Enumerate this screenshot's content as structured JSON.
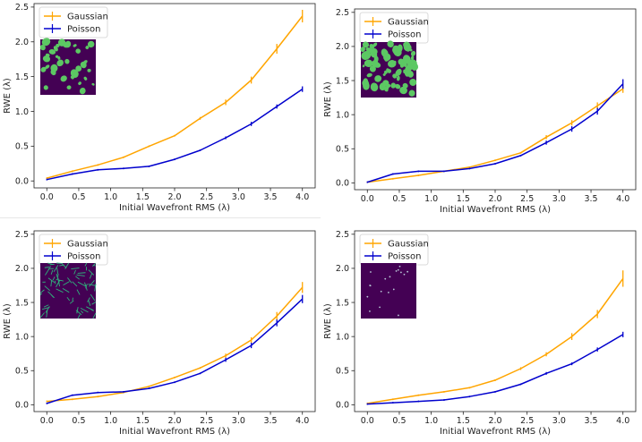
{
  "colors": {
    "gaussian": "#FFA500",
    "poisson": "#0000CD",
    "inset_bg": "#440154",
    "inset_blob": "#5CC863",
    "inset_line": "#2FB47C",
    "axis": "#222222"
  },
  "chart_data": [
    {
      "type": "line",
      "panel": "top-left",
      "xlabel": "Initial Wavefront RMS (λ)",
      "ylabel": "RWE (λ)",
      "xlim": [
        0.0,
        4.0
      ],
      "ylim": [
        0.0,
        2.5
      ],
      "xticks": [
        "0.0",
        "0.5",
        "1.0",
        "1.5",
        "2.0",
        "2.5",
        "3.0",
        "3.5",
        "4.0"
      ],
      "yticks": [
        "0.0",
        "0.5",
        "1.0",
        "1.5",
        "2.0",
        "2.5"
      ],
      "legend_position": "top-left",
      "inset": "blobs",
      "series": [
        {
          "name": "Gaussian",
          "x": [
            0.0,
            0.4,
            0.8,
            1.2,
            1.6,
            2.0,
            2.4,
            2.8,
            3.2,
            3.6,
            4.0
          ],
          "values": [
            0.04,
            0.14,
            0.23,
            0.34,
            0.5,
            0.65,
            0.9,
            1.13,
            1.45,
            1.9,
            2.37
          ],
          "errors": [
            0.0,
            0.0,
            0.0,
            0.0,
            0.0,
            0.0,
            0.02,
            0.04,
            0.05,
            0.07,
            0.09
          ]
        },
        {
          "name": "Poisson",
          "x": [
            0.0,
            0.4,
            0.8,
            1.2,
            1.6,
            2.0,
            2.4,
            2.8,
            3.2,
            3.6,
            4.0
          ],
          "values": [
            0.02,
            0.1,
            0.16,
            0.18,
            0.21,
            0.31,
            0.44,
            0.62,
            0.82,
            1.07,
            1.32
          ],
          "errors": [
            0.0,
            0.0,
            0.0,
            0.0,
            0.0,
            0.0,
            0.0,
            0.02,
            0.03,
            0.03,
            0.04
          ]
        }
      ]
    },
    {
      "type": "line",
      "panel": "top-right",
      "xlabel": "Initial Wavefront RMS (λ)",
      "ylabel": "RWE (λ)",
      "xlim": [
        0.0,
        4.0
      ],
      "ylim": [
        0.0,
        2.5
      ],
      "xticks": [
        "0.0",
        "0.5",
        "1.0",
        "1.5",
        "2.0",
        "2.5",
        "3.0",
        "3.5",
        "4.0"
      ],
      "yticks": [
        "0.0",
        "0.5",
        "1.0",
        "1.5",
        "2.0",
        "2.5"
      ],
      "legend_position": "top-left",
      "inset": "dense-blobs",
      "series": [
        {
          "name": "Gaussian",
          "x": [
            0.0,
            0.4,
            0.8,
            1.2,
            1.6,
            2.0,
            2.4,
            2.8,
            3.2,
            3.6,
            4.0
          ],
          "values": [
            0.01,
            0.06,
            0.11,
            0.17,
            0.23,
            0.33,
            0.44,
            0.67,
            0.88,
            1.13,
            1.38
          ],
          "errors": [
            0.0,
            0.0,
            0.0,
            0.0,
            0.0,
            0.0,
            0.0,
            0.03,
            0.04,
            0.05,
            0.06
          ]
        },
        {
          "name": "Poisson",
          "x": [
            0.0,
            0.4,
            0.8,
            1.2,
            1.6,
            2.0,
            2.4,
            2.8,
            3.2,
            3.6,
            4.0
          ],
          "values": [
            0.01,
            0.13,
            0.17,
            0.17,
            0.21,
            0.28,
            0.4,
            0.59,
            0.79,
            1.05,
            1.45
          ],
          "errors": [
            0.0,
            0.0,
            0.0,
            0.0,
            0.0,
            0.0,
            0.0,
            0.03,
            0.04,
            0.05,
            0.07
          ]
        }
      ]
    },
    {
      "type": "line",
      "panel": "bottom-left",
      "xlabel": "Initial Wavefront RMS (λ)",
      "ylabel": "RWE (λ)",
      "xlim": [
        0.0,
        4.0
      ],
      "ylim": [
        0.0,
        2.5
      ],
      "xticks": [
        "0.0",
        "0.5",
        "1.0",
        "1.5",
        "2.0",
        "2.5",
        "3.0",
        "3.5",
        "4.0"
      ],
      "yticks": [
        "0.0",
        "0.5",
        "1.0",
        "1.5",
        "2.0",
        "2.5"
      ],
      "legend_position": "top-left",
      "inset": "lines",
      "series": [
        {
          "name": "Gaussian",
          "x": [
            0.0,
            0.4,
            0.8,
            1.2,
            1.6,
            2.0,
            2.4,
            2.8,
            3.2,
            3.6,
            4.0
          ],
          "values": [
            0.05,
            0.08,
            0.12,
            0.18,
            0.27,
            0.4,
            0.54,
            0.72,
            0.95,
            1.3,
            1.72
          ],
          "errors": [
            0.0,
            0.0,
            0.0,
            0.0,
            0.0,
            0.0,
            0.0,
            0.03,
            0.04,
            0.06,
            0.08
          ]
        },
        {
          "name": "Poisson",
          "x": [
            0.0,
            0.4,
            0.8,
            1.2,
            1.6,
            2.0,
            2.4,
            2.8,
            3.2,
            3.6,
            4.0
          ],
          "values": [
            0.02,
            0.14,
            0.18,
            0.19,
            0.24,
            0.33,
            0.46,
            0.66,
            0.87,
            1.2,
            1.55
          ],
          "errors": [
            0.0,
            0.0,
            0.0,
            0.0,
            0.0,
            0.0,
            0.0,
            0.03,
            0.04,
            0.05,
            0.06
          ]
        }
      ]
    },
    {
      "type": "line",
      "panel": "bottom-right",
      "xlabel": "Initial Wavefront RMS (λ)",
      "ylabel": "RWE (λ)",
      "xlim": [
        0.0,
        4.0
      ],
      "ylim": [
        0.0,
        2.5
      ],
      "xticks": [
        "0.0",
        "0.5",
        "1.0",
        "1.5",
        "2.0",
        "2.5",
        "3.0",
        "3.5",
        "4.0"
      ],
      "yticks": [
        "0.0",
        "0.5",
        "1.0",
        "1.5",
        "2.0",
        "2.5"
      ],
      "legend_position": "top-left",
      "inset": "sparse-dots",
      "series": [
        {
          "name": "Gaussian",
          "x": [
            0.0,
            0.4,
            0.8,
            1.2,
            1.6,
            2.0,
            2.4,
            2.8,
            3.2,
            3.6,
            4.0
          ],
          "values": [
            0.02,
            0.08,
            0.14,
            0.19,
            0.25,
            0.36,
            0.53,
            0.74,
            1.0,
            1.33,
            1.85
          ],
          "errors": [
            0.0,
            0.0,
            0.0,
            0.0,
            0.0,
            0.0,
            0.02,
            0.03,
            0.05,
            0.06,
            0.12
          ]
        },
        {
          "name": "Poisson",
          "x": [
            0.0,
            0.4,
            0.8,
            1.2,
            1.6,
            2.0,
            2.4,
            2.8,
            3.2,
            3.6,
            4.0
          ],
          "values": [
            0.01,
            0.03,
            0.05,
            0.07,
            0.12,
            0.19,
            0.3,
            0.46,
            0.6,
            0.81,
            1.03
          ],
          "errors": [
            0.0,
            0.0,
            0.0,
            0.0,
            0.0,
            0.0,
            0.0,
            0.02,
            0.02,
            0.03,
            0.04
          ]
        }
      ]
    }
  ]
}
